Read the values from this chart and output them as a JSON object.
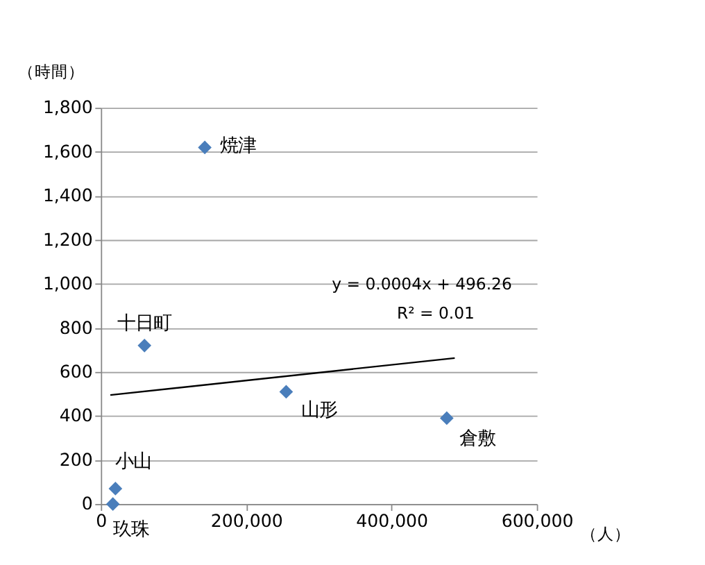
{
  "chart_data": {
    "type": "scatter",
    "xlabel": "（人）",
    "ylabel": "（時間）",
    "series": [
      {
        "color": "#4a7ebb",
        "marker": "diamond",
        "x": [
          143000,
          60000,
          255000,
          476000,
          20000,
          16500
        ],
        "values": [
          1620,
          720,
          510,
          390,
          70,
          0
        ]
      },
      {
        "type": "line",
        "color": "#000000",
        "marker": "none",
        "x": [
          13000,
          487000
        ],
        "values": [
          495,
          663
        ]
      }
    ],
    "annotations": [
      {
        "text": "焼津",
        "x": 143000,
        "y": 1620
      },
      {
        "text": "十日町",
        "x": 60000,
        "y": 720
      },
      {
        "text": "山形",
        "x": 255000,
        "y": 510
      },
      {
        "text": "倉敷",
        "x": 476000,
        "y": 390
      },
      {
        "text": "小山",
        "x": 20000,
        "y": 70
      },
      {
        "text": "玖珠",
        "x": 16500,
        "y": 0
      },
      "y = 0.0004x + 496.26",
      "R² = 0.01"
    ],
    "xlim": [
      0,
      600000
    ],
    "xticks": [
      0,
      {
        "value": 200000,
        "label": "200,000"
      },
      {
        "value": 400000,
        "label": "400,000"
      },
      {
        "value": 600000,
        "label": "600,000"
      }
    ],
    "ylim": [
      0,
      1800
    ],
    "yticks": [
      0,
      200,
      400,
      600,
      800,
      {
        "value": 1000,
        "label": "1,000"
      },
      {
        "value": 1200,
        "label": "1,200"
      },
      {
        "value": 1400,
        "label": "1,400"
      },
      {
        "value": 1600,
        "label": "1,600"
      },
      {
        "value": 1800,
        "label": "1,800"
      }
    ],
    "grid": "y"
  }
}
